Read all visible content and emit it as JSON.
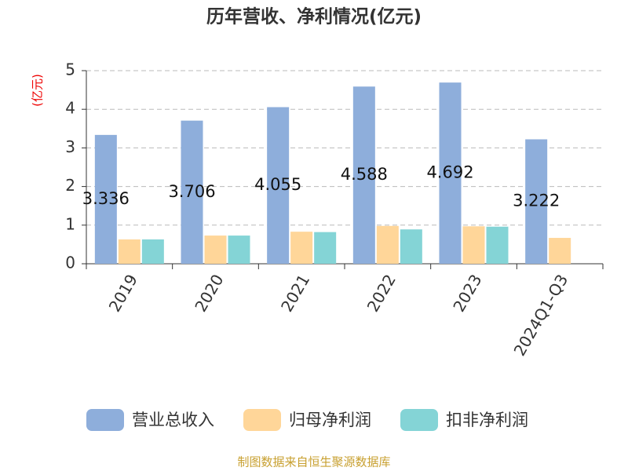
{
  "chart_data": {
    "type": "bar",
    "title": "历年营收、净利情况(亿元)",
    "y_label": "(亿元)",
    "categories": [
      "2019",
      "2020",
      "2021",
      "2022",
      "2023",
      "2024Q1-Q3"
    ],
    "series": [
      {
        "name": "营业总收入",
        "color": "#8eaedb",
        "values": [
          3.336,
          3.706,
          4.055,
          4.588,
          4.692,
          3.222
        ],
        "show_labels": true
      },
      {
        "name": "归母净利润",
        "color": "#ffd699",
        "values": [
          0.63,
          0.73,
          0.83,
          0.98,
          0.97,
          0.67
        ]
      },
      {
        "name": "扣非净利润",
        "color": "#84d4d6",
        "values": [
          0.63,
          0.73,
          0.82,
          0.89,
          0.96,
          null
        ]
      }
    ],
    "ylim": [
      0,
      5
    ],
    "yticks": [
      0,
      1,
      2,
      3,
      4,
      5
    ],
    "grid": true,
    "source": "制图数据来自恒生聚源数据库"
  }
}
